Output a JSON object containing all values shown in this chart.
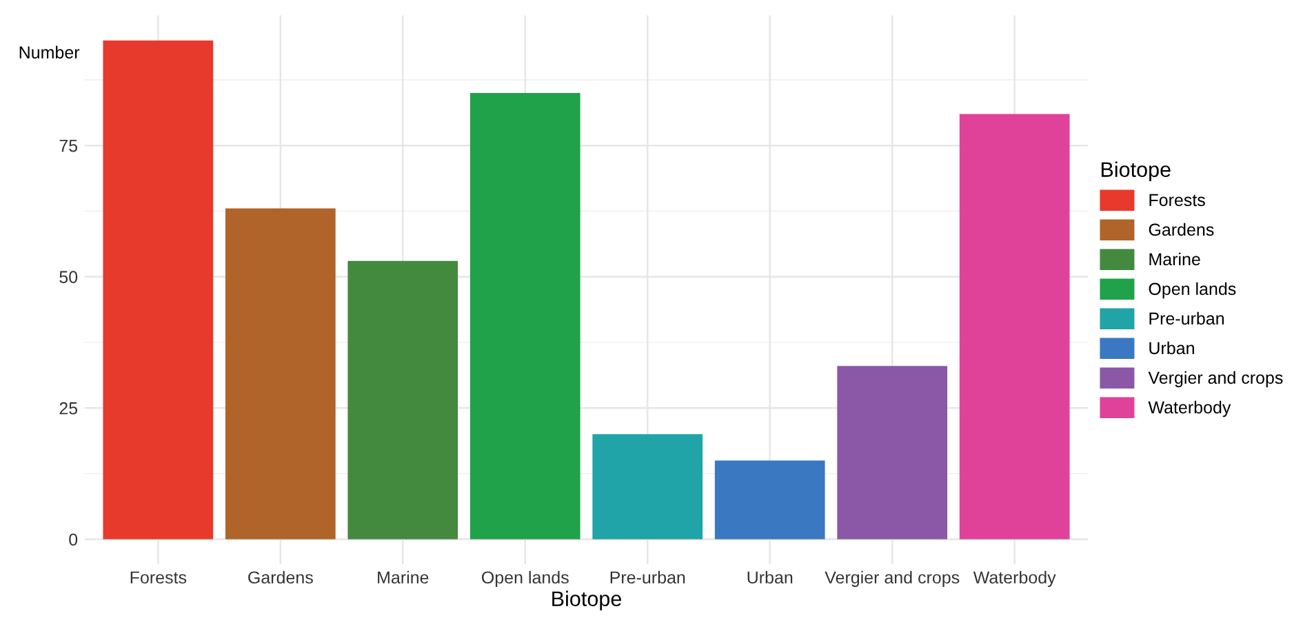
{
  "chart_data": {
    "type": "bar",
    "xlabel": "Biotope",
    "ylabel": "Number",
    "legend_title": "Biotope",
    "categories": [
      "Forests",
      "Gardens",
      "Marine",
      "Open lands",
      "Pre-urban",
      "Urban",
      "Vergier and crops",
      "Waterbody"
    ],
    "series": [
      {
        "name": "Forests",
        "color": "#e8392d",
        "values": [
          95,
          null,
          null,
          null,
          null,
          null,
          null,
          null
        ]
      },
      {
        "name": "Gardens",
        "color": "#b0642a",
        "values": [
          null,
          63,
          null,
          null,
          null,
          null,
          null,
          null
        ]
      },
      {
        "name": "Marine",
        "color": "#438a3f",
        "values": [
          null,
          null,
          53,
          null,
          null,
          null,
          null,
          null
        ]
      },
      {
        "name": "Open lands",
        "color": "#1fa24a",
        "values": [
          null,
          null,
          null,
          85,
          null,
          null,
          null,
          null
        ]
      },
      {
        "name": "Pre-urban",
        "color": "#20a4a8",
        "values": [
          null,
          null,
          null,
          null,
          20,
          null,
          null,
          null
        ]
      },
      {
        "name": "Urban",
        "color": "#3a78c2",
        "values": [
          null,
          null,
          null,
          null,
          null,
          15,
          null,
          null
        ]
      },
      {
        "name": "Vergier and crops",
        "color": "#8a58a6",
        "values": [
          null,
          null,
          null,
          null,
          null,
          null,
          33,
          null
        ]
      },
      {
        "name": "Waterbody",
        "color": "#e0429a",
        "values": [
          null,
          null,
          null,
          null,
          null,
          null,
          null,
          81
        ]
      }
    ],
    "ylim": [
      -4.75,
      99.75
    ],
    "yticks": [
      0,
      25,
      50,
      75
    ],
    "grid": true,
    "legend": "right"
  }
}
